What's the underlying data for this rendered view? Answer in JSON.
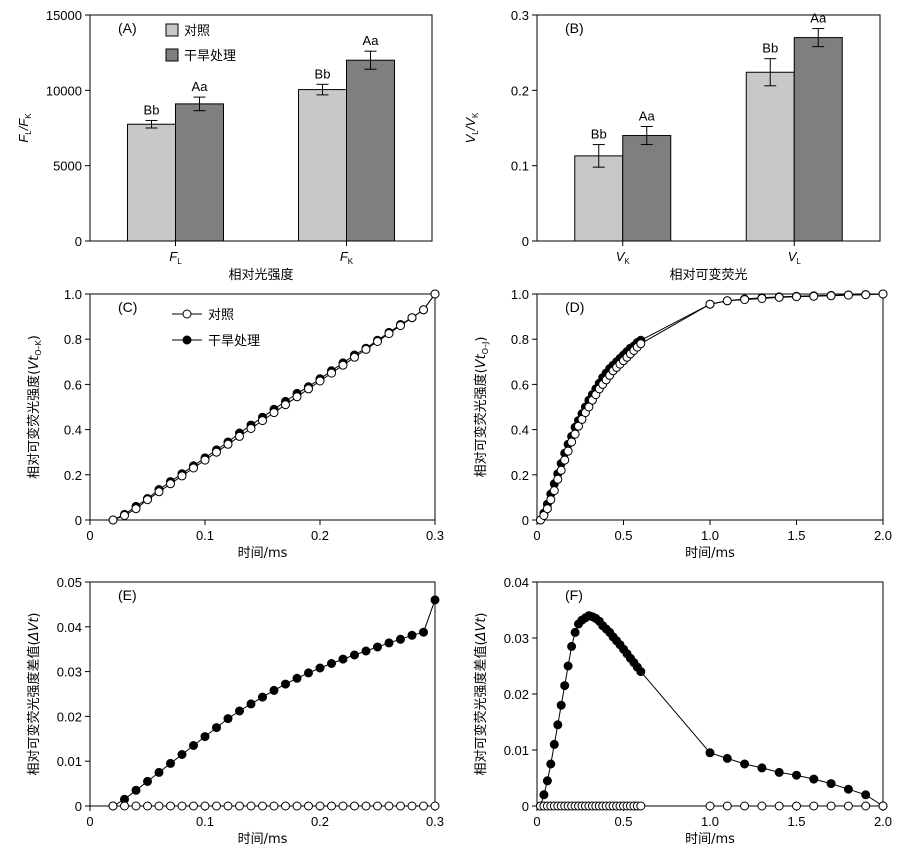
{
  "chart_data": [
    {
      "panel": "(A)",
      "type": "bar",
      "categories": [
        "F",
        "F"
      ],
      "category_subscripts": [
        "L",
        "K"
      ],
      "xlabel": "相对光强度",
      "ylabel": "F",
      "ylabel_sub1": "L",
      "ylabel_sep": "/F",
      "ylabel_sub2": "K",
      "ylim": [
        0,
        15000
      ],
      "yticks": [
        "0",
        "5000",
        "10000",
        "15000"
      ],
      "legend": "top-left",
      "series": [
        {
          "name": "对照",
          "color": "#c8c8c8",
          "values": [
            7750,
            10050
          ],
          "errors": [
            250,
            350
          ],
          "labels": [
            "Bb",
            "Bb"
          ]
        },
        {
          "name": "干旱处理",
          "color": "#7f7f7f",
          "values": [
            9100,
            12000
          ],
          "errors": [
            450,
            600
          ],
          "labels": [
            "Aa",
            "Aa"
          ]
        }
      ]
    },
    {
      "panel": "(B)",
      "type": "bar",
      "categories": [
        "V",
        "V"
      ],
      "category_subscripts": [
        "K",
        "L"
      ],
      "xlabel": "相对可变荧光",
      "ylabel": "V",
      "ylabel_sub1": "L",
      "ylabel_sep": "/V",
      "ylabel_sub2": "K",
      "ylim": [
        0,
        0.3
      ],
      "yticks": [
        "0",
        "0.1",
        "0.2",
        "0.3"
      ],
      "series": [
        {
          "name": "对照",
          "color": "#c8c8c8",
          "values": [
            0.113,
            0.224
          ],
          "errors": [
            0.015,
            0.018
          ],
          "labels": [
            "Bb",
            "Bb"
          ]
        },
        {
          "name": "干旱处理",
          "color": "#7f7f7f",
          "values": [
            0.14,
            0.27
          ],
          "errors": [
            0.012,
            0.012
          ],
          "labels": [
            "Aa",
            "Aa"
          ]
        }
      ]
    },
    {
      "panel": "(C)",
      "type": "line",
      "xlabel": "时间/ms",
      "ylabel": "相对可变荧光强度(",
      "ylabel_var": "Vt",
      "ylabel_sub": "O–K",
      "ylabel_end": ")",
      "xlim": [
        0,
        0.3
      ],
      "ylim": [
        0,
        1.0
      ],
      "xticks": [
        "0",
        "0.1",
        "0.2",
        "0.3"
      ],
      "yticks": [
        "0",
        "0.2",
        "0.4",
        "0.6",
        "0.8",
        "1.0"
      ],
      "legend": "top-left",
      "series": [
        {
          "name": "对照",
          "marker": "open",
          "x": [
            0.02,
            0.03,
            0.04,
            0.05,
            0.06,
            0.07,
            0.08,
            0.09,
            0.1,
            0.11,
            0.12,
            0.13,
            0.14,
            0.15,
            0.16,
            0.17,
            0.18,
            0.19,
            0.2,
            0.21,
            0.22,
            0.23,
            0.24,
            0.25,
            0.26,
            0.27,
            0.28,
            0.29,
            0.3
          ],
          "y": [
            0,
            0.02,
            0.05,
            0.09,
            0.125,
            0.16,
            0.195,
            0.23,
            0.265,
            0.3,
            0.335,
            0.37,
            0.405,
            0.44,
            0.475,
            0.51,
            0.545,
            0.58,
            0.615,
            0.65,
            0.685,
            0.72,
            0.755,
            0.79,
            0.825,
            0.86,
            0.895,
            0.93,
            1.0
          ]
        },
        {
          "name": "干旱处理",
          "marker": "filled",
          "x": [
            0.02,
            0.03,
            0.04,
            0.05,
            0.06,
            0.07,
            0.08,
            0.09,
            0.1,
            0.11,
            0.12,
            0.13,
            0.14,
            0.15,
            0.16,
            0.17,
            0.18,
            0.19,
            0.2,
            0.21,
            0.22,
            0.23,
            0.24,
            0.25,
            0.26,
            0.27,
            0.28,
            0.29,
            0.3
          ],
          "y": [
            0,
            0.025,
            0.06,
            0.095,
            0.135,
            0.17,
            0.205,
            0.24,
            0.275,
            0.31,
            0.345,
            0.385,
            0.42,
            0.455,
            0.49,
            0.525,
            0.56,
            0.59,
            0.625,
            0.66,
            0.695,
            0.73,
            0.76,
            0.795,
            0.83,
            0.865,
            0.895,
            0.93,
            1.0
          ]
        }
      ]
    },
    {
      "panel": "(D)",
      "type": "line",
      "xlabel": "时间/ms",
      "ylabel": "相对可变荧光强度(",
      "ylabel_var": "Vt",
      "ylabel_sub": "O–J",
      "ylabel_end": ")",
      "xlim": [
        0,
        2.0
      ],
      "ylim": [
        0,
        1.0
      ],
      "xticks": [
        "0",
        "0.5",
        "1.0",
        "1.5",
        "2.0"
      ],
      "yticks": [
        "0",
        "0.2",
        "0.4",
        "0.6",
        "0.8",
        "1.0"
      ],
      "series": [
        {
          "name": "对照",
          "marker": "open",
          "x": [
            0.02,
            0.04,
            0.06,
            0.08,
            0.1,
            0.12,
            0.14,
            0.16,
            0.18,
            0.2,
            0.22,
            0.24,
            0.26,
            0.28,
            0.3,
            0.32,
            0.34,
            0.36,
            0.38,
            0.4,
            0.42,
            0.44,
            0.46,
            0.48,
            0.5,
            0.52,
            0.54,
            0.56,
            0.58,
            0.6,
            1.0,
            1.1,
            1.2,
            1.3,
            1.4,
            1.5,
            1.6,
            1.7,
            1.8,
            1.9,
            2.0
          ],
          "y": [
            0.0,
            0.02,
            0.05,
            0.09,
            0.13,
            0.18,
            0.22,
            0.265,
            0.305,
            0.345,
            0.38,
            0.415,
            0.445,
            0.475,
            0.5,
            0.53,
            0.555,
            0.58,
            0.6,
            0.62,
            0.64,
            0.66,
            0.675,
            0.69,
            0.705,
            0.72,
            0.735,
            0.75,
            0.765,
            0.78,
            0.955,
            0.97,
            0.975,
            0.98,
            0.985,
            0.988,
            0.99,
            0.992,
            0.995,
            0.997,
            1.0
          ]
        },
        {
          "name": "干旱处理",
          "marker": "filled",
          "x": [
            0.02,
            0.04,
            0.06,
            0.08,
            0.1,
            0.12,
            0.14,
            0.16,
            0.18,
            0.2,
            0.22,
            0.24,
            0.26,
            0.28,
            0.3,
            0.32,
            0.34,
            0.36,
            0.38,
            0.4,
            0.42,
            0.44,
            0.46,
            0.48,
            0.5,
            0.52,
            0.54,
            0.56,
            0.58,
            0.6,
            1.0,
            1.1,
            1.2,
            1.3,
            1.4,
            1.5,
            1.6,
            1.7,
            1.8,
            1.9,
            2.0
          ],
          "y": [
            0.0,
            0.03,
            0.07,
            0.115,
            0.16,
            0.205,
            0.25,
            0.295,
            0.335,
            0.37,
            0.41,
            0.44,
            0.47,
            0.5,
            0.53,
            0.555,
            0.58,
            0.605,
            0.63,
            0.65,
            0.67,
            0.685,
            0.7,
            0.715,
            0.73,
            0.745,
            0.76,
            0.77,
            0.785,
            0.795,
            0.955,
            0.97,
            0.978,
            0.983,
            0.987,
            0.99,
            0.992,
            0.994,
            0.996,
            0.998,
            1.0
          ]
        }
      ]
    },
    {
      "panel": "(E)",
      "type": "line",
      "xlabel": "时间/ms",
      "ylabel": "相对可变荧光强度差值(",
      "ylabel_var": "ΔVt",
      "ylabel_end": ")",
      "xlim": [
        0,
        0.3
      ],
      "ylim": [
        0,
        0.05
      ],
      "xticks": [
        "0",
        "0.1",
        "0.2",
        "0.3"
      ],
      "yticks": [
        "0",
        "0.01",
        "0.02",
        "0.03",
        "0.04",
        "0.05"
      ],
      "series": [
        {
          "name": "对照",
          "marker": "open",
          "x": [
            0.02,
            0.03,
            0.04,
            0.05,
            0.06,
            0.07,
            0.08,
            0.09,
            0.1,
            0.11,
            0.12,
            0.13,
            0.14,
            0.15,
            0.16,
            0.17,
            0.18,
            0.19,
            0.2,
            0.21,
            0.22,
            0.23,
            0.24,
            0.25,
            0.26,
            0.27,
            0.28,
            0.29,
            0.3
          ],
          "y": [
            0,
            0,
            0,
            0,
            0,
            0,
            0,
            0,
            0,
            0,
            0,
            0,
            0,
            0,
            0,
            0,
            0,
            0,
            0,
            0,
            0,
            0,
            0,
            0,
            0,
            0,
            0,
            0,
            0
          ]
        },
        {
          "name": "干旱处理",
          "marker": "filled",
          "x": [
            0.02,
            0.03,
            0.04,
            0.05,
            0.06,
            0.07,
            0.08,
            0.09,
            0.1,
            0.11,
            0.12,
            0.13,
            0.14,
            0.15,
            0.16,
            0.17,
            0.18,
            0.19,
            0.2,
            0.21,
            0.22,
            0.23,
            0.24,
            0.25,
            0.26,
            0.27,
            0.28,
            0.29,
            0.3
          ],
          "y": [
            0,
            0.0015,
            0.0035,
            0.0055,
            0.0075,
            0.0095,
            0.0115,
            0.0135,
            0.0155,
            0.0175,
            0.0195,
            0.0212,
            0.0228,
            0.0243,
            0.0258,
            0.0272,
            0.0285,
            0.0297,
            0.0308,
            0.0318,
            0.0328,
            0.0337,
            0.0346,
            0.0355,
            0.0364,
            0.0372,
            0.0381,
            0.0388,
            0.046
          ]
        }
      ]
    },
    {
      "panel": "(F)",
      "type": "line",
      "xlabel": "时间/ms",
      "ylabel": "相对可变荧光强度差值(",
      "ylabel_var": "ΔVt",
      "ylabel_end": ")",
      "xlim": [
        0,
        2.0
      ],
      "ylim": [
        0,
        0.04
      ],
      "xticks": [
        "0",
        "0.5",
        "1.0",
        "1.5",
        "2.0"
      ],
      "yticks": [
        "0",
        "0.01",
        "0.02",
        "0.03",
        "0.04"
      ],
      "series": [
        {
          "name": "对照",
          "marker": "open",
          "x": [
            0.02,
            0.04,
            0.06,
            0.08,
            0.1,
            0.12,
            0.14,
            0.16,
            0.18,
            0.2,
            0.22,
            0.24,
            0.26,
            0.28,
            0.3,
            0.32,
            0.34,
            0.36,
            0.38,
            0.4,
            0.42,
            0.44,
            0.46,
            0.48,
            0.5,
            0.52,
            0.54,
            0.56,
            0.58,
            0.6,
            1.0,
            1.1,
            1.2,
            1.3,
            1.4,
            1.5,
            1.6,
            1.7,
            1.8,
            1.9,
            2.0
          ],
          "y": [
            0,
            0,
            0,
            0,
            0,
            0,
            0,
            0,
            0,
            0,
            0,
            0,
            0,
            0,
            0,
            0,
            0,
            0,
            0,
            0,
            0,
            0,
            0,
            0,
            0,
            0,
            0,
            0,
            0,
            0,
            0,
            0,
            0,
            0,
            0,
            0,
            0,
            0,
            0,
            0,
            0
          ]
        },
        {
          "name": "干旱处理",
          "marker": "filled",
          "x": [
            0.02,
            0.04,
            0.06,
            0.08,
            0.1,
            0.12,
            0.14,
            0.16,
            0.18,
            0.2,
            0.22,
            0.24,
            0.26,
            0.28,
            0.3,
            0.32,
            0.34,
            0.36,
            0.38,
            0.4,
            0.42,
            0.44,
            0.46,
            0.48,
            0.5,
            0.52,
            0.54,
            0.56,
            0.58,
            0.6,
            1.0,
            1.1,
            1.2,
            1.3,
            1.4,
            1.5,
            1.6,
            1.7,
            1.8,
            1.9,
            2.0
          ],
          "y": [
            0,
            0.002,
            0.0045,
            0.0075,
            0.011,
            0.0145,
            0.018,
            0.0215,
            0.025,
            0.0285,
            0.031,
            0.0325,
            0.0332,
            0.0336,
            0.034,
            0.0338,
            0.0335,
            0.033,
            0.0322,
            0.0316,
            0.031,
            0.0302,
            0.0295,
            0.0288,
            0.028,
            0.0272,
            0.0264,
            0.0256,
            0.0248,
            0.024,
            0.0095,
            0.0085,
            0.0075,
            0.0068,
            0.006,
            0.0055,
            0.0048,
            0.004,
            0.003,
            0.002,
            0.0
          ]
        }
      ]
    }
  ]
}
